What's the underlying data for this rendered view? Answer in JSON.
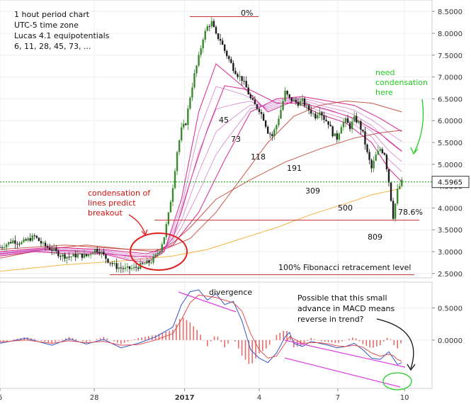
{
  "annotations": {
    "info_lines": [
      "1 hout period chart",
      "UTC-5 time zone",
      "Lucas 4.1 equipotentials",
      "6, 11, 28, 45, 73, ..."
    ],
    "fib_top": "0%",
    "fib_786": "78.6%",
    "fib_bottom": "100% Fibonacci retracement level",
    "condensation_lines": [
      "condensation of",
      "lines predict",
      "breakout"
    ],
    "need_condensation_lines": [
      "need",
      "condensation",
      "here"
    ],
    "ma_labels": [
      "45",
      "73",
      "118",
      "191",
      "309",
      "500",
      "809"
    ],
    "divergence": "divergence",
    "macd_note_lines": [
      "Possible that this small",
      "advance in MACD means",
      "reverse in trend?"
    ]
  },
  "colors": {
    "candle": "#3a8a2e",
    "candle_dark": "#1d1d1d",
    "fast_ma": "#d4007a",
    "slow_ma": "#c0392b",
    "slowest_ma": "#f5a623",
    "current_line": "#00a000",
    "red_circle": "#e02020",
    "red_text": "#d01010",
    "green_text": "#22cc22",
    "macd_line": "#3355cc",
    "signal_line": "#e05050",
    "hist": "#e05050",
    "trend_channel": "#e040e0",
    "price_box": "#ffffff"
  },
  "chart_data": [
    {
      "type": "line",
      "title": "",
      "xlabel": "",
      "ylabel": "",
      "x_ticks": [
        "6",
        "28",
        "2017",
        "4",
        "7",
        "10"
      ],
      "y_ticks": [
        "8.5000",
        "8.0000",
        "7.5000",
        "7.0000",
        "6.5000",
        "6.0000",
        "5.5000",
        "5.0000",
        "4.5000",
        "4.0000",
        "3.5000",
        "3.0000",
        "2.5000"
      ],
      "ylim": [
        2.4,
        8.6
      ],
      "current_price_label": "4.5965",
      "current_price": 4.5965,
      "fib_0_level": 8.38,
      "fib_786_level": 3.72,
      "fib_100_level": 2.47,
      "x_index_range": [
        0,
        100
      ],
      "series": [
        {
          "values": [
            [
              0,
              3.1
            ],
            [
              3,
              3.25
            ],
            [
              5,
              3.2
            ],
            [
              8,
              3.35
            ],
            [
              10,
              3.15
            ],
            [
              12,
              3.05
            ],
            [
              14,
              2.92
            ],
            [
              16,
              2.88
            ],
            [
              18,
              2.92
            ],
            [
              20,
              2.9
            ],
            [
              22,
              3.05
            ],
            [
              23,
              3.02
            ],
            [
              25,
              2.8
            ],
            [
              27,
              2.65
            ],
            [
              29,
              2.6
            ],
            [
              31,
              2.62
            ],
            [
              33,
              2.7
            ],
            [
              35,
              2.78
            ],
            [
              36,
              2.9
            ],
            [
              37,
              3.05
            ],
            [
              38,
              3.35
            ],
            [
              39,
              3.85
            ],
            [
              40,
              4.5
            ],
            [
              41,
              5.3
            ],
            [
              42,
              5.8
            ],
            [
              43,
              5.95
            ],
            [
              44,
              6.55
            ],
            [
              45,
              7.05
            ],
            [
              46,
              7.45
            ],
            [
              47,
              7.9
            ],
            [
              48,
              8.15
            ],
            [
              49,
              8.25
            ],
            [
              50,
              7.95
            ],
            [
              51,
              7.85
            ],
            [
              52,
              7.6
            ],
            [
              53,
              7.4
            ],
            [
              54,
              7.2
            ],
            [
              55,
              7.05
            ],
            [
              56,
              6.95
            ],
            [
              57,
              6.75
            ],
            [
              58,
              6.5
            ],
            [
              59,
              6.35
            ],
            [
              60,
              6.25
            ],
            [
              61,
              6.05
            ],
            [
              62,
              5.75
            ],
            [
              63,
              5.65
            ],
            [
              64,
              5.9
            ],
            [
              65,
              6.25
            ],
            [
              66,
              6.65
            ],
            [
              67,
              6.5
            ],
            [
              68,
              6.45
            ],
            [
              69,
              6.4
            ],
            [
              70,
              6.45
            ],
            [
              71,
              6.3
            ],
            [
              72,
              6.2
            ],
            [
              73,
              6.1
            ],
            [
              74,
              6.25
            ],
            [
              75,
              6.05
            ],
            [
              76,
              5.95
            ],
            [
              77,
              5.7
            ],
            [
              78,
              5.6
            ],
            [
              79,
              5.9
            ],
            [
              80,
              6.0
            ],
            [
              81,
              5.85
            ],
            [
              82,
              6.05
            ],
            [
              83,
              5.95
            ],
            [
              84,
              5.7
            ],
            [
              85,
              5.25
            ],
            [
              86,
              4.9
            ],
            [
              87,
              5.2
            ],
            [
              88,
              5.35
            ],
            [
              89,
              5.25
            ],
            [
              90,
              4.6
            ],
            [
              91,
              3.8
            ],
            [
              92,
              4.4
            ],
            [
              93,
              4.6
            ]
          ]
        },
        {
          "values": [
            [
              0,
              2.85
            ],
            [
              10,
              3.05
            ],
            [
              20,
              3.15
            ],
            [
              30,
              3.05
            ],
            [
              36,
              3.0
            ],
            [
              40,
              3.2
            ],
            [
              44,
              3.55
            ],
            [
              50,
              4.2
            ],
            [
              58,
              4.65
            ],
            [
              66,
              5.05
            ],
            [
              74,
              5.35
            ],
            [
              82,
              5.6
            ],
            [
              88,
              5.72
            ],
            [
              93,
              5.78
            ]
          ]
        },
        {
          "values": [
            [
              0,
              2.55
            ],
            [
              15,
              2.7
            ],
            [
              30,
              2.8
            ],
            [
              40,
              2.9
            ],
            [
              48,
              3.05
            ],
            [
              56,
              3.3
            ],
            [
              64,
              3.55
            ],
            [
              72,
              3.85
            ],
            [
              80,
              4.1
            ],
            [
              86,
              4.3
            ],
            [
              93,
              4.45
            ]
          ]
        },
        {
          "values": [
            [
              0,
              2.9
            ],
            [
              8,
              3.0
            ],
            [
              16,
              2.95
            ],
            [
              24,
              2.95
            ],
            [
              30,
              2.8
            ],
            [
              34,
              2.75
            ],
            [
              38,
              3.0
            ],
            [
              42,
              4.2
            ],
            [
              46,
              6.2
            ],
            [
              50,
              7.3
            ],
            [
              56,
              6.8
            ],
            [
              62,
              6.2
            ],
            [
              68,
              6.45
            ],
            [
              74,
              6.15
            ],
            [
              80,
              5.95
            ],
            [
              86,
              5.5
            ],
            [
              90,
              4.9
            ],
            [
              93,
              4.6
            ]
          ]
        },
        {
          "values": [
            [
              0,
              2.95
            ],
            [
              10,
              3.05
            ],
            [
              20,
              3.0
            ],
            [
              30,
              2.9
            ],
            [
              36,
              2.88
            ],
            [
              40,
              3.3
            ],
            [
              44,
              4.6
            ],
            [
              48,
              5.8
            ],
            [
              52,
              6.8
            ],
            [
              58,
              6.7
            ],
            [
              64,
              6.4
            ],
            [
              70,
              6.4
            ],
            [
              76,
              6.25
            ],
            [
              82,
              6.05
            ],
            [
              88,
              5.7
            ],
            [
              93,
              5.3
            ]
          ]
        },
        {
          "values": [
            [
              0,
              3.0
            ],
            [
              12,
              3.1
            ],
            [
              24,
              3.05
            ],
            [
              34,
              2.95
            ],
            [
              40,
              3.15
            ],
            [
              46,
              3.9
            ],
            [
              52,
              5.1
            ],
            [
              58,
              6.2
            ],
            [
              64,
              6.5
            ],
            [
              70,
              6.55
            ],
            [
              76,
              6.45
            ],
            [
              82,
              6.35
            ],
            [
              88,
              6.05
            ],
            [
              93,
              5.75
            ]
          ]
        },
        {
          "values": [
            [
              0,
              3.05
            ],
            [
              15,
              3.15
            ],
            [
              30,
              3.05
            ],
            [
              38,
              3.05
            ],
            [
              44,
              3.3
            ],
            [
              50,
              3.9
            ],
            [
              56,
              4.7
            ],
            [
              62,
              5.5
            ],
            [
              68,
              6.1
            ],
            [
              74,
              6.35
            ],
            [
              80,
              6.45
            ],
            [
              86,
              6.4
            ],
            [
              93,
              6.2
            ]
          ]
        }
      ]
    },
    {
      "type": "line",
      "title": "",
      "xlabel": "",
      "ylabel": "",
      "y_ticks": [
        "0.5000",
        "0.0000"
      ],
      "ylim": [
        -0.75,
        0.9
      ],
      "series": [
        {
          "values": [
            [
              0,
              -0.05
            ],
            [
              6,
              0.03
            ],
            [
              12,
              -0.08
            ],
            [
              16,
              0.02
            ],
            [
              20,
              -0.06
            ],
            [
              24,
              0.01
            ],
            [
              28,
              -0.12
            ],
            [
              32,
              -0.05
            ],
            [
              36,
              0.05
            ],
            [
              40,
              0.2
            ],
            [
              42,
              0.55
            ],
            [
              44,
              0.75
            ],
            [
              46,
              0.78
            ],
            [
              48,
              0.62
            ],
            [
              50,
              0.72
            ],
            [
              52,
              0.55
            ],
            [
              54,
              0.6
            ],
            [
              56,
              0.3
            ],
            [
              58,
              -0.15
            ],
            [
              60,
              -0.28
            ],
            [
              62,
              -0.35
            ],
            [
              64,
              -0.2
            ],
            [
              66,
              0.05
            ],
            [
              67,
              0.12
            ],
            [
              68,
              -0.05
            ],
            [
              70,
              -0.1
            ],
            [
              72,
              -0.02
            ],
            [
              74,
              -0.05
            ],
            [
              76,
              -0.08
            ],
            [
              78,
              -0.12
            ],
            [
              80,
              -0.1
            ],
            [
              82,
              -0.05
            ],
            [
              84,
              -0.15
            ],
            [
              86,
              -0.28
            ],
            [
              88,
              -0.3
            ],
            [
              90,
              -0.18
            ],
            [
              91,
              -0.28
            ],
            [
              92,
              -0.38
            ],
            [
              93,
              -0.35
            ]
          ]
        },
        {
          "values": [
            [
              0,
              -0.03
            ],
            [
              6,
              0.0
            ],
            [
              12,
              -0.05
            ],
            [
              16,
              -0.01
            ],
            [
              20,
              -0.04
            ],
            [
              24,
              -0.02
            ],
            [
              28,
              -0.08
            ],
            [
              32,
              -0.07
            ],
            [
              36,
              0.0
            ],
            [
              40,
              0.1
            ],
            [
              42,
              0.32
            ],
            [
              44,
              0.58
            ],
            [
              46,
              0.7
            ],
            [
              48,
              0.68
            ],
            [
              50,
              0.66
            ],
            [
              52,
              0.62
            ],
            [
              54,
              0.58
            ],
            [
              56,
              0.45
            ],
            [
              58,
              0.1
            ],
            [
              60,
              -0.15
            ],
            [
              62,
              -0.28
            ],
            [
              64,
              -0.25
            ],
            [
              66,
              -0.05
            ],
            [
              67,
              0.05
            ],
            [
              68,
              0.02
            ],
            [
              70,
              -0.05
            ],
            [
              72,
              -0.04
            ],
            [
              74,
              -0.04
            ],
            [
              76,
              -0.06
            ],
            [
              78,
              -0.09
            ],
            [
              80,
              -0.1
            ],
            [
              82,
              -0.08
            ],
            [
              84,
              -0.11
            ],
            [
              86,
              -0.2
            ],
            [
              88,
              -0.25
            ],
            [
              90,
              -0.22
            ],
            [
              91,
              -0.24
            ],
            [
              92,
              -0.3
            ],
            [
              93,
              -0.33
            ]
          ]
        }
      ]
    }
  ]
}
